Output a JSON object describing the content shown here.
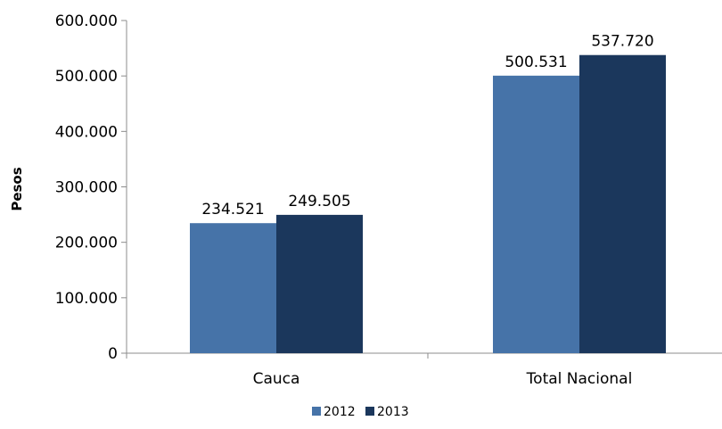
{
  "chart_data": {
    "type": "bar",
    "categories": [
      "Cauca",
      "Total Nacional"
    ],
    "series": [
      {
        "name": "2012",
        "values": [
          234521,
          500531
        ],
        "labels": [
          "234.521",
          "500.531"
        ],
        "color": "#4673A8"
      },
      {
        "name": "2013",
        "values": [
          249505,
          537720
        ],
        "labels": [
          "249.505",
          "537.720"
        ],
        "color": "#1B375C"
      }
    ],
    "ylabel": "Pesos",
    "xlabel": "",
    "ylim": [
      0,
      600000
    ],
    "y_ticks": [
      {
        "value": 0,
        "label": "0"
      },
      {
        "value": 100000,
        "label": "100.000"
      },
      {
        "value": 200000,
        "label": "200.000"
      },
      {
        "value": 300000,
        "label": "300.000"
      },
      {
        "value": 400000,
        "label": "400.000"
      },
      {
        "value": 500000,
        "label": "500.000"
      },
      {
        "value": 600000,
        "label": "600.000"
      }
    ],
    "grid": false,
    "legend_position": "bottom"
  }
}
